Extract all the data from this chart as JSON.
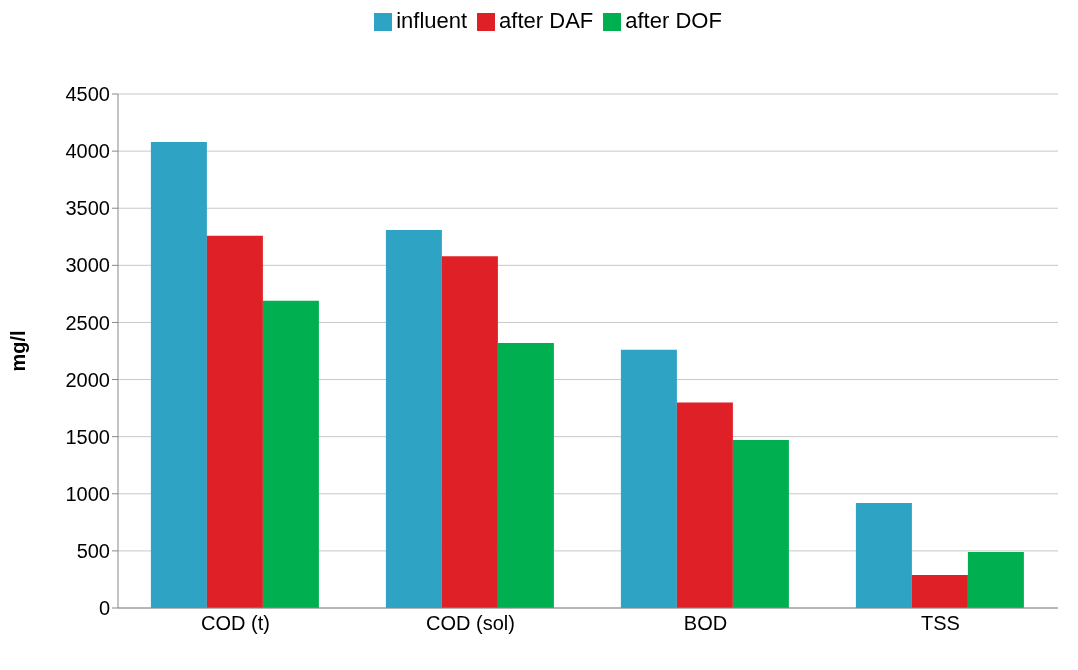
{
  "chart_data": {
    "type": "bar",
    "ylabel": "mg/l",
    "categories": [
      "COD (t)",
      "COD (sol)",
      "BOD",
      "TSS"
    ],
    "series": [
      {
        "name": "influent",
        "color": "#2ea3c4",
        "values": [
          4080,
          3310,
          2260,
          920
        ]
      },
      {
        "name": "after DAF",
        "color": "#e02027",
        "values": [
          3260,
          3080,
          1800,
          290
        ]
      },
      {
        "name": "after DOF",
        "color": "#00b050",
        "values": [
          2690,
          2320,
          1470,
          490
        ]
      }
    ],
    "ylim": [
      0,
      4500
    ],
    "yticks": [
      0,
      500,
      1000,
      1500,
      2000,
      2500,
      3000,
      3500,
      4000,
      4500
    ],
    "grid": "y",
    "legend": "top"
  }
}
